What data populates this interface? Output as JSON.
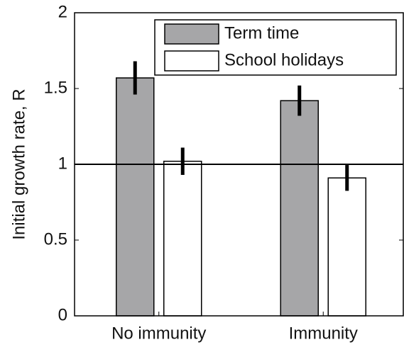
{
  "chart_data": {
    "type": "bar",
    "y_label": "Initial growth rate, R",
    "categories": [
      "No immunity",
      "Immunity"
    ],
    "series": [
      {
        "name": "Term time",
        "color": "#a6a6a8",
        "values": [
          1.57,
          1.42
        ],
        "errors": [
          0.11,
          0.1
        ]
      },
      {
        "name": "School holidays",
        "color": "#ffffff",
        "values": [
          1.02,
          0.91
        ],
        "errors": [
          0.09,
          0.085
        ]
      }
    ],
    "ylim": [
      0,
      2
    ],
    "yticks": [
      0,
      0.5,
      1,
      1.5,
      2
    ],
    "reference_line": 1,
    "legend": "upper right"
  }
}
